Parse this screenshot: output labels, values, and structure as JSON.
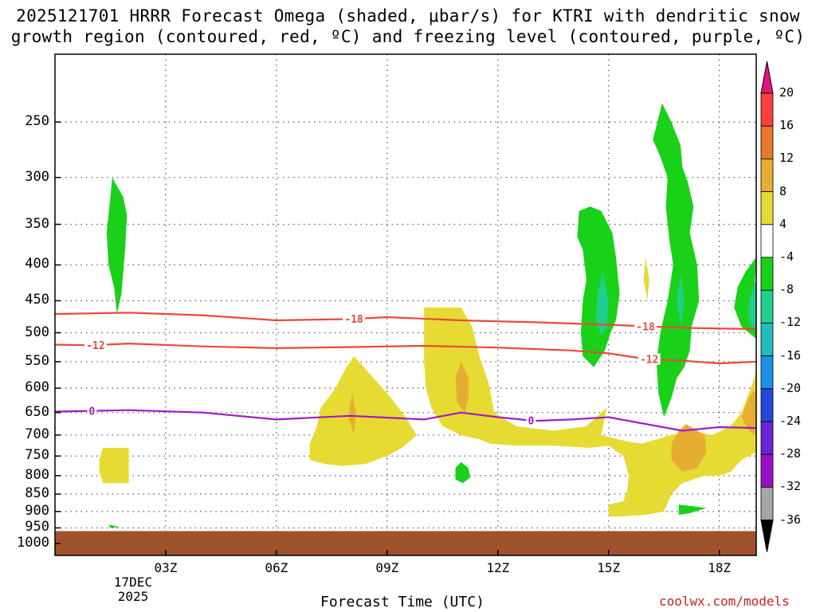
{
  "chart_data": {
    "type": "heatmap",
    "title_lines": [
      "2025121701 HRRR Forecast Omega (shaded, μbar/s) for KTRI with dendritic snow",
      "growth region (contoured, red, ºC) and freezing level (contoured, purple, ºC)"
    ],
    "xlabel": "Forecast Time (UTC)",
    "x_ticks": [
      "03Z",
      "06Z",
      "09Z",
      "12Z",
      "15Z",
      "18Z"
    ],
    "x_tick_hours": [
      3,
      6,
      9,
      12,
      15,
      18
    ],
    "x_range_hours": [
      0,
      19
    ],
    "date_lines": [
      "17DEC",
      "2025"
    ],
    "y_ticks": [
      250,
      300,
      350,
      400,
      450,
      500,
      550,
      600,
      650,
      700,
      750,
      800,
      850,
      900,
      950,
      1000
    ],
    "y_range_mb": [
      200,
      1040
    ],
    "y_scale": "log-pressure",
    "colorbar": {
      "labels": [
        "20",
        "16",
        "12",
        "8",
        "4",
        "-4",
        "-8",
        "-12",
        "-16",
        "-20",
        "-24",
        "-28",
        "-32",
        "-36"
      ],
      "colors": [
        "#ff3e3e",
        "#e8792c",
        "#e6ad33",
        "#e6db33",
        "#ffffff",
        "#19d119",
        "#1fcf8c",
        "#22bcbc",
        "#1f8fe6",
        "#2247d9",
        "#6a23d6",
        "#9810c4",
        "#a6a6a6"
      ],
      "top_color": "#e0147f",
      "bottom_color": "#000000"
    },
    "shaded_regions": [
      {
        "name": "green-cell-1",
        "category": "-4 to -8",
        "color": "#19d119",
        "points": [
          [
            1.55,
            300
          ],
          [
            1.85,
            320
          ],
          [
            1.95,
            340
          ],
          [
            1.9,
            380
          ],
          [
            1.8,
            440
          ],
          [
            1.68,
            470
          ],
          [
            1.6,
            430
          ],
          [
            1.45,
            400
          ],
          [
            1.4,
            360
          ],
          [
            1.5,
            320
          ]
        ]
      },
      {
        "name": "green-cell-2",
        "category": "-4 to -8",
        "color": "#19d119",
        "points": [
          [
            14.5,
            330
          ],
          [
            14.8,
            335
          ],
          [
            15.1,
            360
          ],
          [
            15.2,
            390
          ],
          [
            15.3,
            440
          ],
          [
            15.2,
            480
          ],
          [
            15.05,
            500
          ],
          [
            14.9,
            530
          ],
          [
            14.6,
            560
          ],
          [
            14.3,
            540
          ],
          [
            14.25,
            500
          ],
          [
            14.3,
            450
          ],
          [
            14.4,
            420
          ],
          [
            14.3,
            380
          ],
          [
            14.15,
            365
          ],
          [
            14.2,
            335
          ]
        ]
      },
      {
        "name": "green-cell-3",
        "category": "-4 to -8",
        "color": "#19d119",
        "points": [
          [
            16.45,
            235
          ],
          [
            16.7,
            250
          ],
          [
            16.95,
            270
          ],
          [
            17,
            290
          ],
          [
            17.15,
            305
          ],
          [
            17.3,
            330
          ],
          [
            17.2,
            360
          ],
          [
            17.4,
            400
          ],
          [
            17.45,
            450
          ],
          [
            17.25,
            490
          ],
          [
            17.2,
            530
          ],
          [
            17.05,
            560
          ],
          [
            16.85,
            580
          ],
          [
            16.7,
            620
          ],
          [
            16.5,
            660
          ],
          [
            16.35,
            610
          ],
          [
            16.3,
            550
          ],
          [
            16.4,
            500
          ],
          [
            16.6,
            450
          ],
          [
            16.75,
            400
          ],
          [
            16.65,
            370
          ],
          [
            16.55,
            330
          ],
          [
            16.6,
            300
          ],
          [
            16.4,
            280
          ],
          [
            16.2,
            265
          ]
        ]
      },
      {
        "name": "green-cell-4",
        "category": "-4 to -8",
        "color": "#19d119",
        "points": [
          [
            19,
            390
          ],
          [
            18.95,
            440
          ],
          [
            19,
            510
          ],
          [
            18.6,
            490
          ],
          [
            18.4,
            460
          ],
          [
            18.5,
            430
          ],
          [
            18.7,
            410
          ]
        ]
      },
      {
        "name": "green-cell-5",
        "category": "-4 to -8",
        "color": "#19d119",
        "points": [
          [
            11.0,
            765
          ],
          [
            11.2,
            780
          ],
          [
            11.25,
            805
          ],
          [
            11.05,
            820
          ],
          [
            10.85,
            810
          ],
          [
            10.85,
            780
          ]
        ]
      },
      {
        "name": "green-cell-6",
        "category": "-4 to -8",
        "color": "#19d119",
        "points": [
          [
            16.9,
            880
          ],
          [
            17.3,
            885
          ],
          [
            17.65,
            890
          ],
          [
            17.2,
            905
          ],
          [
            16.9,
            910
          ]
        ]
      },
      {
        "name": "green-cell-7",
        "category": "-4 to -8",
        "color": "#19d119",
        "points": [
          [
            1.45,
            940
          ],
          [
            1.75,
            947
          ],
          [
            1.5,
            950
          ]
        ]
      },
      {
        "name": "teal-cell-1",
        "category": "-8 to -12",
        "color": "#1fcf8c",
        "points": [
          [
            14.85,
            410
          ],
          [
            15.0,
            450
          ],
          [
            14.95,
            490
          ],
          [
            14.8,
            505
          ],
          [
            14.65,
            480
          ],
          [
            14.7,
            440
          ]
        ]
      },
      {
        "name": "teal-cell-2",
        "category": "-8 to -12",
        "color": "#1fcf8c",
        "points": [
          [
            16.95,
            410
          ],
          [
            17.05,
            450
          ],
          [
            16.95,
            490
          ],
          [
            16.85,
            450
          ]
        ]
      },
      {
        "name": "teal-cell-3",
        "category": "-8 to -12",
        "color": "#1fcf8c",
        "points": [
          [
            19,
            420
          ],
          [
            18.8,
            450
          ],
          [
            18.8,
            480
          ],
          [
            19,
            500
          ]
        ]
      },
      {
        "name": "yellow-cell-1",
        "category": "4 to 8",
        "color": "#e6db33",
        "points": [
          [
            10.0,
            460
          ],
          [
            11.0,
            460
          ],
          [
            11.3,
            490
          ],
          [
            11.5,
            540
          ],
          [
            11.75,
            590
          ],
          [
            11.9,
            650
          ],
          [
            12.5,
            680
          ],
          [
            13.5,
            690
          ],
          [
            14.4,
            680
          ],
          [
            14.8,
            650
          ],
          [
            14.95,
            640
          ],
          [
            14.8,
            700
          ],
          [
            15.5,
            715
          ],
          [
            15.9,
            720
          ],
          [
            16.3,
            710
          ],
          [
            16.7,
            700
          ],
          [
            17.3,
            690
          ],
          [
            17.8,
            700
          ],
          [
            18.3,
            680
          ],
          [
            18.6,
            650
          ],
          [
            18.9,
            590
          ],
          [
            19,
            565
          ],
          [
            19,
            740
          ],
          [
            18.6,
            760
          ],
          [
            18.3,
            790
          ],
          [
            18.0,
            800
          ],
          [
            17.6,
            800
          ],
          [
            17.0,
            820
          ],
          [
            16.7,
            850
          ],
          [
            16.5,
            900
          ],
          [
            16.0,
            910
          ],
          [
            15.3,
            915
          ],
          [
            15.0,
            915
          ],
          [
            15.0,
            880
          ],
          [
            15.4,
            870
          ],
          [
            15.5,
            840
          ],
          [
            15.55,
            800
          ],
          [
            15.4,
            750
          ],
          [
            15.0,
            725
          ],
          [
            14.5,
            730
          ],
          [
            13.5,
            725
          ],
          [
            12.5,
            725
          ],
          [
            11.8,
            720
          ],
          [
            11.5,
            710
          ],
          [
            11.0,
            700
          ],
          [
            10.5,
            680
          ],
          [
            10.2,
            640
          ],
          [
            10.05,
            600
          ],
          [
            10.0,
            550
          ]
        ]
      },
      {
        "name": "yellow-cell-2",
        "category": "4 to 8",
        "color": "#e6db33",
        "points": [
          [
            8.1,
            540
          ],
          [
            8.5,
            570
          ],
          [
            9.0,
            610
          ],
          [
            9.5,
            660
          ],
          [
            9.8,
            700
          ],
          [
            9.4,
            730
          ],
          [
            9.0,
            750
          ],
          [
            8.4,
            770
          ],
          [
            7.8,
            775
          ],
          [
            7.3,
            770
          ],
          [
            6.9,
            760
          ],
          [
            6.9,
            720
          ],
          [
            7.1,
            680
          ],
          [
            7.2,
            640
          ],
          [
            7.6,
            600
          ],
          [
            7.85,
            565
          ]
        ]
      },
      {
        "name": "yellow-cell-3",
        "category": "4 to 8",
        "color": "#e6db33",
        "points": [
          [
            1.3,
            730
          ],
          [
            2.0,
            730
          ],
          [
            2.0,
            820
          ],
          [
            1.3,
            820
          ],
          [
            1.2,
            790
          ],
          [
            1.2,
            760
          ]
        ]
      },
      {
        "name": "yellow-cell-4",
        "category": "4 to 8",
        "color": "#e6db33",
        "points": [
          [
            16.0,
            390
          ],
          [
            16.1,
            420
          ],
          [
            16.05,
            450
          ],
          [
            15.95,
            420
          ]
        ]
      },
      {
        "name": "orange-cell-1",
        "category": "8 to 12",
        "color": "#e6ad33",
        "points": [
          [
            11.0,
            550
          ],
          [
            11.2,
            580
          ],
          [
            11.2,
            620
          ],
          [
            11.1,
            650
          ],
          [
            10.9,
            630
          ],
          [
            10.85,
            580
          ]
        ]
      },
      {
        "name": "orange-cell-2",
        "category": "8 to 12",
        "color": "#e6ad33",
        "points": [
          [
            8.05,
            610
          ],
          [
            8.15,
            650
          ],
          [
            8.1,
            700
          ],
          [
            7.95,
            660
          ]
        ]
      },
      {
        "name": "orange-cell-3",
        "category": "8 to 12",
        "color": "#e6ad33",
        "points": [
          [
            17.1,
            675
          ],
          [
            17.6,
            700
          ],
          [
            17.65,
            740
          ],
          [
            17.4,
            780
          ],
          [
            17.0,
            790
          ],
          [
            16.7,
            760
          ],
          [
            16.7,
            720
          ],
          [
            16.9,
            690
          ]
        ]
      },
      {
        "name": "orange-cell-4",
        "category": "8 to 12",
        "color": "#e6ad33",
        "points": [
          [
            19,
            600
          ],
          [
            18.8,
            620
          ],
          [
            18.6,
            660
          ],
          [
            18.8,
            690
          ],
          [
            19,
            700
          ]
        ]
      }
    ],
    "contours": [
      {
        "label": "-18",
        "color": "#e84a3c",
        "label_hour": 8.1,
        "label_hour_2": 16.0,
        "points": [
          [
            0,
            470
          ],
          [
            2,
            468
          ],
          [
            4,
            472
          ],
          [
            6,
            480
          ],
          [
            8,
            478
          ],
          [
            9,
            475
          ],
          [
            11,
            480
          ],
          [
            13,
            483
          ],
          [
            15,
            487
          ],
          [
            17,
            492
          ],
          [
            19,
            494
          ]
        ]
      },
      {
        "label": "-12",
        "color": "#e84a3c",
        "label_hour": 1.1,
        "label_hour_2": 16.1,
        "points": [
          [
            0,
            520
          ],
          [
            1,
            521
          ],
          [
            2,
            518
          ],
          [
            4,
            523
          ],
          [
            6,
            526
          ],
          [
            8,
            524
          ],
          [
            10,
            522
          ],
          [
            12,
            525
          ],
          [
            14,
            530
          ],
          [
            15,
            535
          ],
          [
            16,
            545
          ],
          [
            17,
            548
          ],
          [
            18,
            553
          ],
          [
            19,
            550
          ]
        ]
      },
      {
        "label": "0",
        "color": "#a21ac2",
        "label_hour": 1.0,
        "label_hour_2": 12.9,
        "points": [
          [
            0,
            648
          ],
          [
            2,
            645
          ],
          [
            4,
            650
          ],
          [
            6,
            665
          ],
          [
            8,
            657
          ],
          [
            10,
            665
          ],
          [
            11,
            650
          ],
          [
            12,
            660
          ],
          [
            13,
            668
          ],
          [
            14,
            665
          ],
          [
            15,
            660
          ],
          [
            16,
            675
          ],
          [
            17,
            690
          ],
          [
            18,
            682
          ],
          [
            19,
            684
          ]
        ]
      }
    ],
    "ground": {
      "color": "#a0522d",
      "top_mb": 960
    }
  },
  "footer": {
    "xlabel": "Forecast Time (UTC)",
    "credit": "coolwx.com/models"
  }
}
